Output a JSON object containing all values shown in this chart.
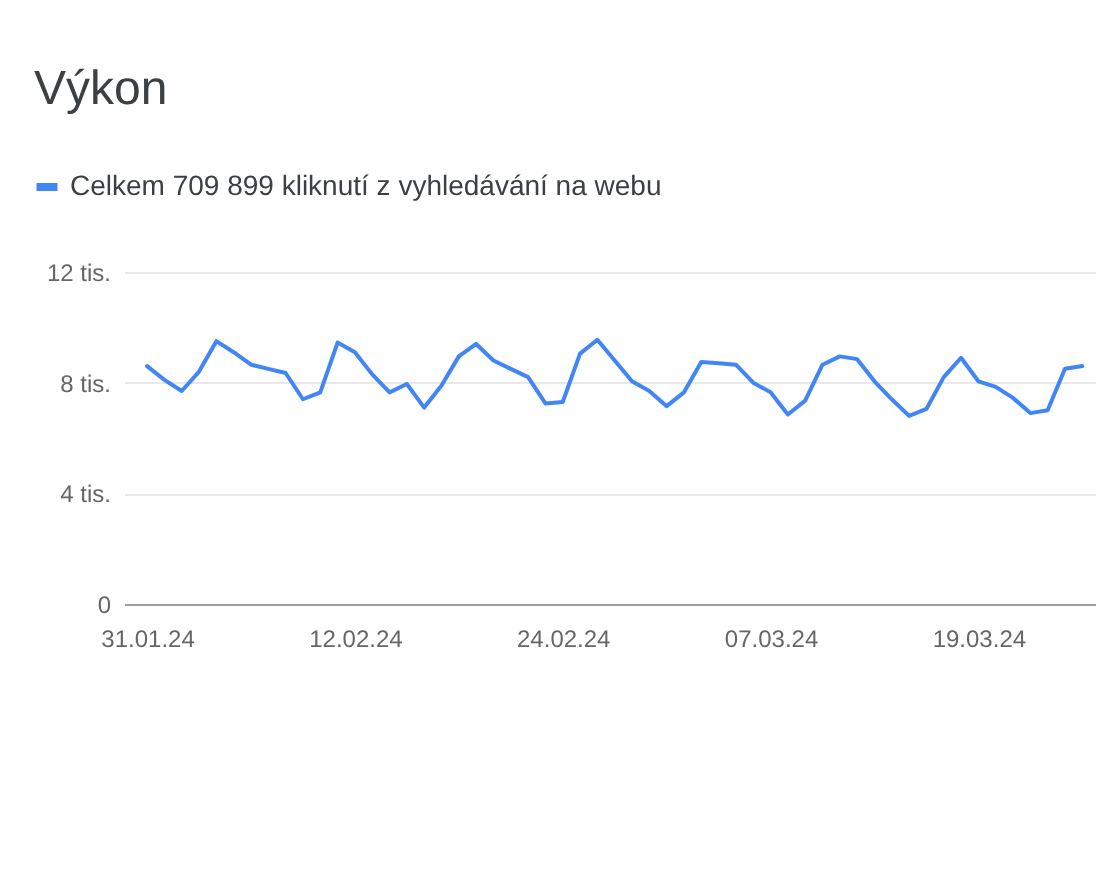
{
  "chart_data": {
    "type": "line",
    "title": "Výkon",
    "x": [
      "2024-01-31",
      "2024-02-01",
      "2024-02-02",
      "2024-02-03",
      "2024-02-04",
      "2024-02-05",
      "2024-02-06",
      "2024-02-07",
      "2024-02-08",
      "2024-02-09",
      "2024-02-10",
      "2024-02-11",
      "2024-02-12",
      "2024-02-13",
      "2024-02-14",
      "2024-02-15",
      "2024-02-16",
      "2024-02-17",
      "2024-02-18",
      "2024-02-19",
      "2024-02-20",
      "2024-02-21",
      "2024-02-22",
      "2024-02-23",
      "2024-02-24",
      "2024-02-25",
      "2024-02-26",
      "2024-02-27",
      "2024-02-28",
      "2024-02-29",
      "2024-03-01",
      "2024-03-02",
      "2024-03-03",
      "2024-03-04",
      "2024-03-05",
      "2024-03-06",
      "2024-03-07",
      "2024-03-08",
      "2024-03-09",
      "2024-03-10",
      "2024-03-11",
      "2024-03-12",
      "2024-03-13",
      "2024-03-14",
      "2024-03-15",
      "2024-03-16",
      "2024-03-17",
      "2024-03-18",
      "2024-03-19",
      "2024-03-20",
      "2024-03-21",
      "2024-03-22",
      "2024-03-23",
      "2024-03-24",
      "2024-03-25"
    ],
    "series": [
      {
        "name": "Celkem 709 899 kliknutí z vyhledávání na webu",
        "color": "#4285f4",
        "values": [
          8.6,
          8.1,
          7.7,
          8.4,
          9.5,
          9.1,
          8.65,
          8.5,
          8.35,
          7.4,
          7.65,
          9.45,
          9.1,
          8.3,
          7.65,
          7.95,
          7.1,
          7.9,
          8.95,
          9.4,
          8.8,
          8.5,
          8.2,
          7.25,
          7.3,
          9.05,
          9.55,
          8.8,
          8.05,
          7.7,
          7.15,
          7.65,
          8.75,
          8.7,
          8.65,
          8.0,
          7.65,
          6.85,
          7.35,
          8.65,
          8.95,
          8.85,
          8.05,
          7.4,
          6.8,
          7.05,
          8.2,
          8.9,
          8.05,
          7.85,
          7.45,
          6.9,
          7.0,
          8.5,
          8.6
        ]
      }
    ],
    "xlim": [
      "2024-01-29T16:00",
      "2024-03-25T19:00"
    ],
    "xticks": [
      {
        "value": "2024-01-31",
        "label": "31.01.24"
      },
      {
        "value": "2024-02-12",
        "label": "12.02.24"
      },
      {
        "value": "2024-02-24",
        "label": "24.02.24"
      },
      {
        "value": "2024-03-07",
        "label": "07.03.24"
      },
      {
        "value": "2024-03-19",
        "label": "19.03.24"
      }
    ],
    "ylim": [
      0,
      12
    ],
    "yticks": [
      0,
      {
        "value": 4,
        "label": "4 tis."
      },
      {
        "value": 8,
        "label": "8 tis."
      },
      {
        "value": 12,
        "label": "12 tis."
      }
    ],
    "grid": "y",
    "legend": "top left"
  }
}
